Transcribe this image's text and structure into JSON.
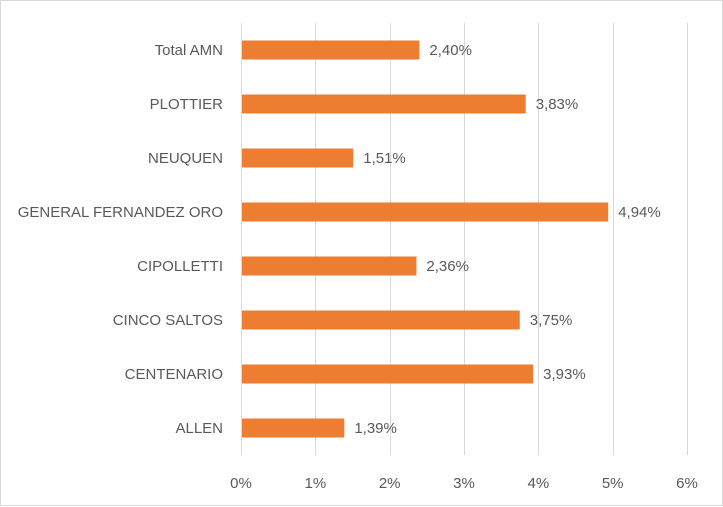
{
  "chart_data": {
    "type": "bar",
    "orientation": "horizontal",
    "categories": [
      "Total AMN",
      "PLOTTIER",
      "NEUQUEN",
      "GENERAL FERNANDEZ ORO",
      "CIPOLLETTI",
      "CINCO SALTOS",
      "CENTENARIO",
      "ALLEN"
    ],
    "values": [
      2.4,
      3.83,
      1.51,
      4.94,
      2.36,
      3.75,
      3.93,
      1.39
    ],
    "value_labels": [
      "2,40%",
      "3,83%",
      "1,51%",
      "4,94%",
      "2,36%",
      "3,75%",
      "3,93%",
      "1,39%"
    ],
    "xlim": [
      0,
      6
    ],
    "x_ticks": [
      0,
      1,
      2,
      3,
      4,
      5,
      6
    ],
    "x_tick_labels": [
      "0%",
      "1%",
      "2%",
      "3%",
      "4%",
      "5%",
      "6%"
    ],
    "grid": "vertical",
    "legend": "none",
    "bar_color": "#ED7D31",
    "grid_color": "#d9d9d9",
    "text_color": "#595959",
    "title": "",
    "xlabel": "",
    "ylabel": ""
  }
}
